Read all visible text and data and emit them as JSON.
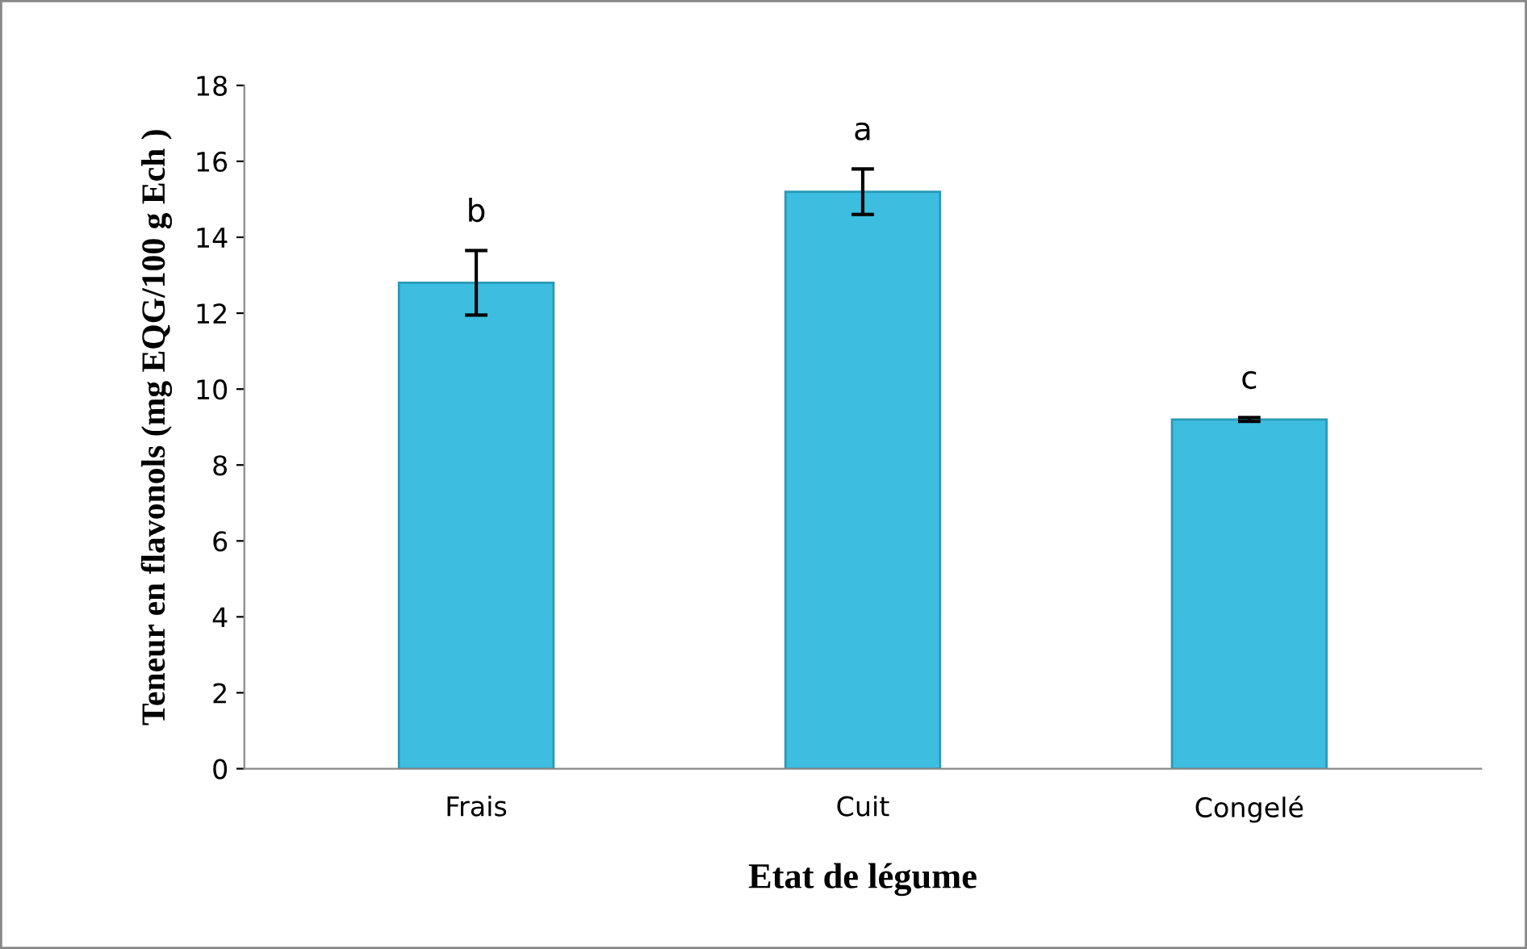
{
  "chart_data": {
    "type": "bar",
    "xlabel": "Etat de légume",
    "ylabel": "Teneur en flavonols (mg EQG/100 g Ech )",
    "categories": [
      "Frais",
      "Cuit",
      "Congelé"
    ],
    "values": [
      12.8,
      15.2,
      9.2
    ],
    "errors": [
      0.85,
      0.6,
      0.05
    ],
    "color": "#3dbde0",
    "ylim": [
      0,
      18
    ],
    "yticks": [
      0,
      2,
      4,
      6,
      8,
      10,
      12,
      14,
      16,
      18
    ],
    "grid": false,
    "annotations": [
      "b",
      "a",
      "c"
    ]
  }
}
